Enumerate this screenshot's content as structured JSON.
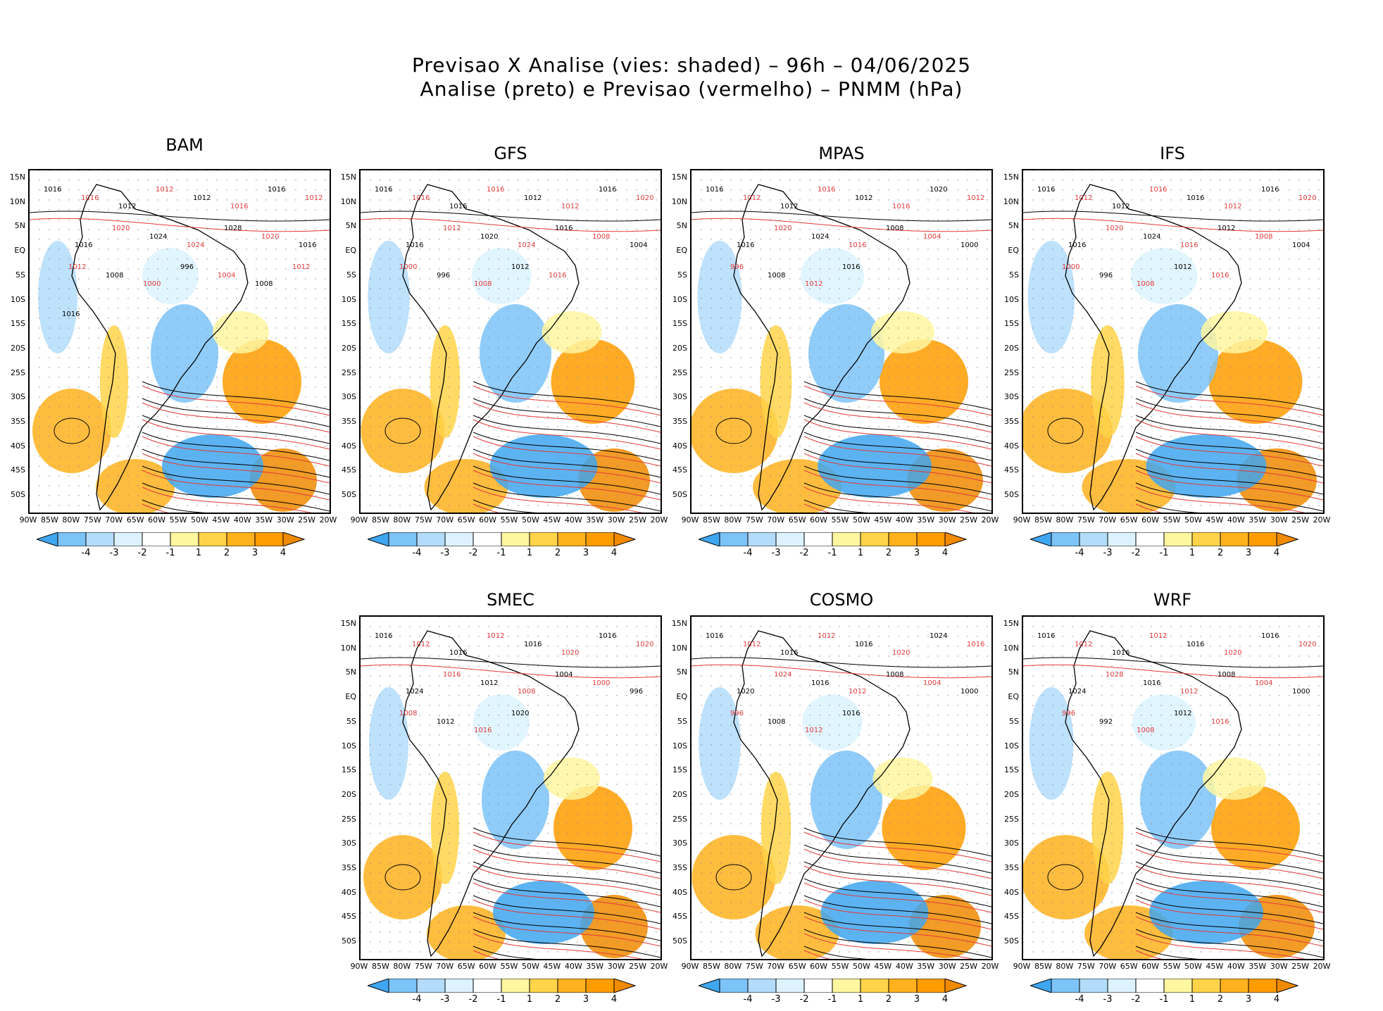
{
  "title_line1": "Previsao X Analise (vies: shaded) – 96h – 04/06/2025",
  "title_line2": "Analise (preto) e Previsao (vermelho) – PNMM (hPa)",
  "lat_labels": [
    "15N",
    "10N",
    "5N",
    "EQ",
    "5S",
    "10S",
    "15S",
    "20S",
    "25S",
    "30S",
    "35S",
    "40S",
    "45S",
    "50S"
  ],
  "lon_labels": [
    "90W",
    "85W",
    "80W",
    "75W",
    "70W",
    "65W",
    "60W",
    "55W",
    "50W",
    "45W",
    "40W",
    "35W",
    "30W",
    "25W",
    "20W"
  ],
  "colorbar": {
    "labels": [
      "-4",
      "-3",
      "-2",
      "-1",
      "1",
      "2",
      "3",
      "4"
    ],
    "colors": [
      "#3fa6f0",
      "#7cc3f8",
      "#b3dcfb",
      "#dcf3ff",
      "#ffffff",
      "#fff6a0",
      "#ffd44a",
      "#ffb21e",
      "#ff9c00",
      "#f08a00"
    ]
  },
  "contour_colors": {
    "analysis": "#000000",
    "forecast": "#e23a3a"
  },
  "panels": [
    {
      "name": "BAM",
      "isobars": [
        "1016",
        "1016",
        "1012",
        "1012",
        "1012",
        "1016",
        "1016",
        "1012",
        "1016",
        "1020",
        "1024",
        "1024",
        "1028",
        "1020",
        "1016",
        "1012",
        "1008",
        "1000",
        "996",
        "1004",
        "1008",
        "1012",
        "1016"
      ]
    },
    {
      "name": "GFS",
      "isobars": [
        "1016",
        "1016",
        "1016",
        "1016",
        "1012",
        "1012",
        "1016",
        "1020",
        "1016",
        "1012",
        "1020",
        "1024",
        "1016",
        "1008",
        "1004",
        "1000",
        "996",
        "1008",
        "1012",
        "1016"
      ]
    },
    {
      "name": "MPAS",
      "isobars": [
        "1016",
        "1012",
        "1012",
        "1016",
        "1012",
        "1016",
        "1020",
        "1012",
        "1016",
        "1020",
        "1024",
        "1016",
        "1008",
        "1004",
        "1000",
        "996",
        "1008",
        "1012",
        "1016"
      ]
    },
    {
      "name": "IFS",
      "isobars": [
        "1016",
        "1012",
        "1012",
        "1016",
        "1016",
        "1012",
        "1016",
        "1020",
        "1016",
        "1020",
        "1024",
        "1016",
        "1012",
        "1008",
        "1004",
        "1000",
        "996",
        "1008",
        "1012",
        "1016"
      ]
    },
    {
      "name": "SMEC",
      "isobars": [
        "1016",
        "1012",
        "1016",
        "1012",
        "1016",
        "1020",
        "1016",
        "1020",
        "1024",
        "1016",
        "1012",
        "1008",
        "1004",
        "1000",
        "996",
        "1008",
        "1012",
        "1016",
        "1020"
      ]
    },
    {
      "name": "COSMO",
      "isobars": [
        "1016",
        "1012",
        "1016",
        "1012",
        "1016",
        "1020",
        "1024",
        "1016",
        "1020",
        "1024",
        "1016",
        "1012",
        "1008",
        "1004",
        "1000",
        "996",
        "1008",
        "1012",
        "1016"
      ]
    },
    {
      "name": "WRF",
      "isobars": [
        "1016",
        "1012",
        "1016",
        "1012",
        "1016",
        "1020",
        "1016",
        "1020",
        "1024",
        "1028",
        "1016",
        "1012",
        "1008",
        "1004",
        "1000",
        "996",
        "992",
        "1008",
        "1012",
        "1016"
      ]
    }
  ]
}
